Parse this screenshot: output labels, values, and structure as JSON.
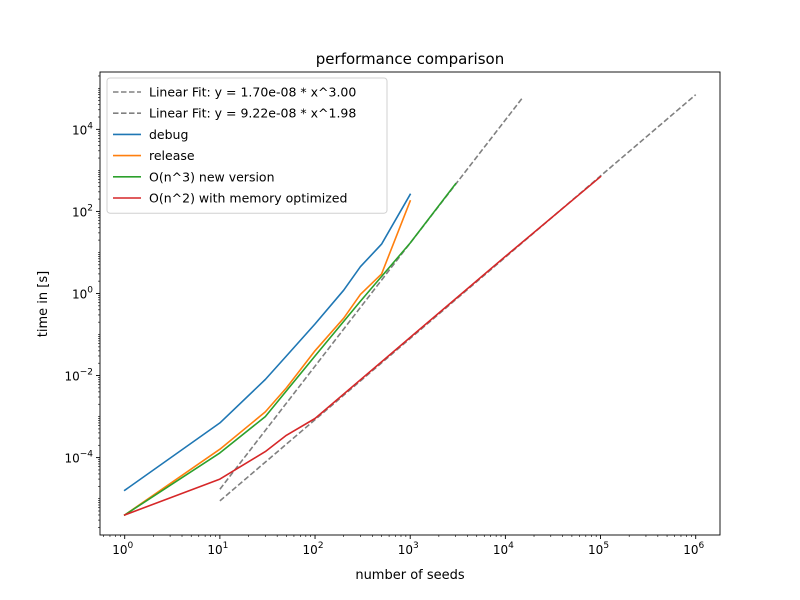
{
  "chart_data": {
    "type": "line",
    "title": "performance comparison",
    "xlabel": "number of seeds",
    "ylabel": "time in [s]",
    "xscale": "log",
    "yscale": "log",
    "xlim": [
      0.55,
      1800000
    ],
    "ylim": [
      1.3e-06,
      250000
    ],
    "x_ticks": [
      {
        "base": "10",
        "exp": "0",
        "value": 1
      },
      {
        "base": "10",
        "exp": "1",
        "value": 10
      },
      {
        "base": "10",
        "exp": "2",
        "value": 100
      },
      {
        "base": "10",
        "exp": "3",
        "value": 1000
      },
      {
        "base": "10",
        "exp": "4",
        "value": 10000
      },
      {
        "base": "10",
        "exp": "5",
        "value": 100000
      },
      {
        "base": "10",
        "exp": "6",
        "value": 1000000
      }
    ],
    "y_ticks": [
      {
        "base": "10",
        "exp": "−4",
        "value": 0.0001
      },
      {
        "base": "10",
        "exp": "−2",
        "value": 0.01
      },
      {
        "base": "10",
        "exp": "0",
        "value": 1
      },
      {
        "base": "10",
        "exp": "2",
        "value": 100
      },
      {
        "base": "10",
        "exp": "4",
        "value": 10000
      }
    ],
    "grid": false,
    "legend": "upper-left",
    "series": [
      {
        "name": "Linear Fit: y = 1.70e-08 * x^3.00",
        "color": "#808080",
        "dashed": true,
        "x": [
          10,
          15000
        ],
        "y": [
          1.7e-05,
          57000
        ]
      },
      {
        "name": "Linear Fit: y = 9.22e-08 * x^1.98",
        "color": "#808080",
        "dashed": true,
        "x": [
          10,
          1000000
        ],
        "y": [
          8.8e-06,
          70000
        ]
      },
      {
        "name": "debug",
        "color": "#1f77b4",
        "dashed": false,
        "x": [
          1,
          10,
          30,
          50,
          100,
          200,
          300,
          500,
          1000
        ],
        "y": [
          1.6e-05,
          0.0007,
          0.008,
          0.03,
          0.18,
          1.2,
          4.5,
          16,
          260
        ]
      },
      {
        "name": "release",
        "color": "#ff7f0e",
        "dashed": false,
        "x": [
          1,
          10,
          30,
          50,
          100,
          200,
          300,
          500,
          1000
        ],
        "y": [
          4e-06,
          0.00016,
          0.0013,
          0.005,
          0.04,
          0.25,
          0.95,
          3,
          180
        ]
      },
      {
        "name": "O(n^3) new version",
        "color": "#2ca02c",
        "dashed": false,
        "x": [
          1,
          10,
          30,
          100,
          300,
          1000,
          3000
        ],
        "y": [
          4e-06,
          0.00013,
          0.001,
          0.03,
          0.65,
          17,
          470
        ]
      },
      {
        "name": "O(n^2) with memory optimized",
        "color": "#d62728",
        "dashed": false,
        "x": [
          1,
          10,
          30,
          50,
          100,
          1000,
          10000,
          100000
        ],
        "y": [
          4e-06,
          3e-05,
          0.00014,
          0.00035,
          0.0009,
          0.085,
          8,
          700
        ]
      }
    ]
  }
}
